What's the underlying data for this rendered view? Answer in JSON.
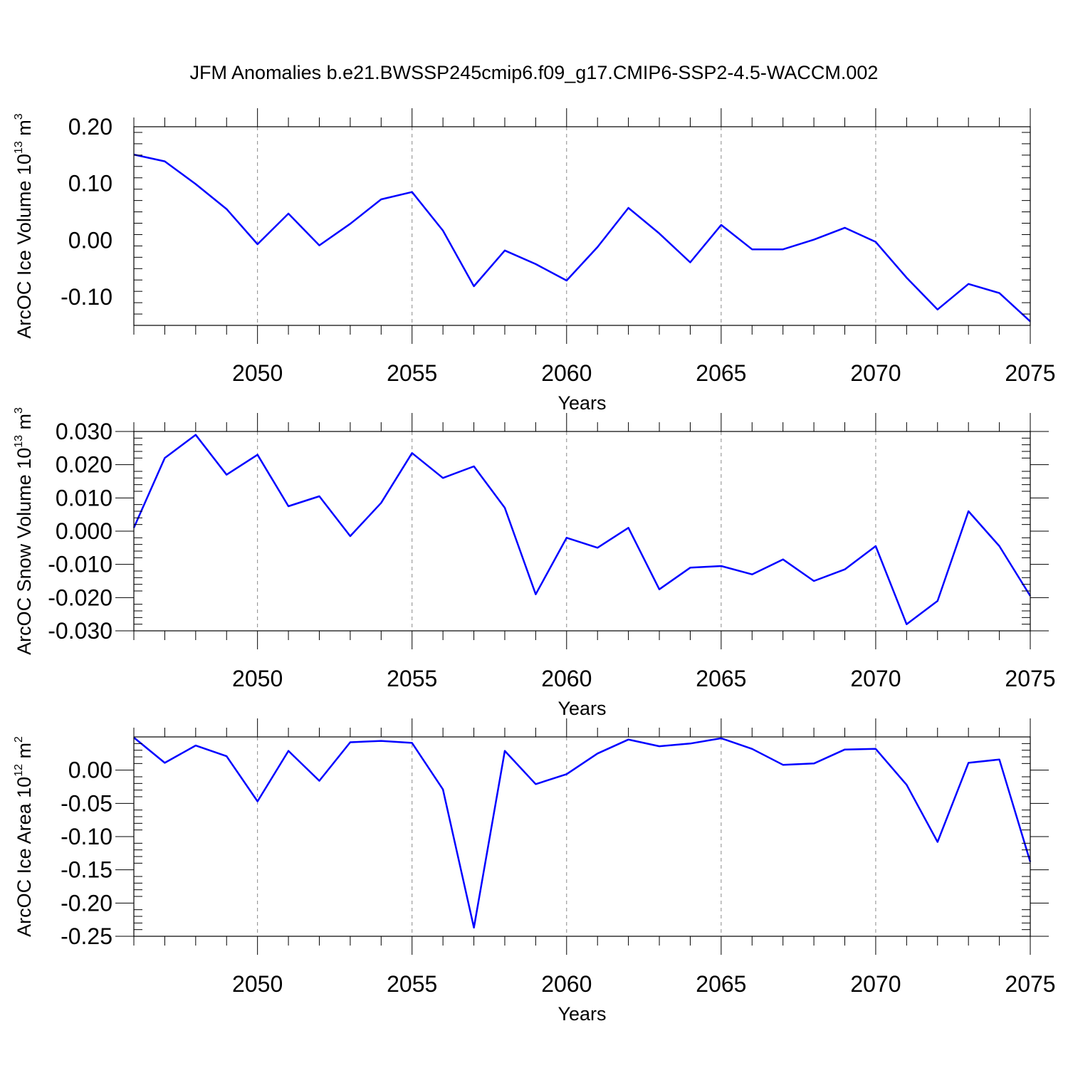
{
  "figure": {
    "title": "JFM Anomalies b.e21.BWSSP245cmip6.f09_g17.CMIP6-SSP2-4.5-WACCM.002"
  },
  "colors": {
    "line": "#0000ff",
    "axes": "#000000",
    "grid": "#888888"
  },
  "chart_data": [
    {
      "type": "line",
      "title": "JFM Anomalies b.e21.BWSSP245cmip6.f09_g17.CMIP6-SSP2-4.5-WACCM.002",
      "xlabel": "Years",
      "ylabel": "ArcOC Ice Volume 10",
      "ylabel_exp": "13",
      "ylabel_unit": " m",
      "ylabel_unit_exp": "3",
      "x": [
        2046,
        2047,
        2048,
        2049,
        2050,
        2051,
        2052,
        2053,
        2054,
        2055,
        2056,
        2057,
        2058,
        2059,
        2060,
        2061,
        2062,
        2063,
        2064,
        2065,
        2066,
        2067,
        2068,
        2069,
        2070,
        2071,
        2072,
        2073,
        2074,
        2075
      ],
      "series": [
        {
          "values": [
            0.151,
            0.139,
            0.099,
            0.055,
            -0.007,
            0.047,
            -0.009,
            0.029,
            0.072,
            0.085,
            0.017,
            -0.081,
            -0.018,
            -0.042,
            -0.071,
            -0.012,
            0.057,
            0.012,
            -0.039,
            0.027,
            -0.016,
            -0.016,
            0.001,
            0.022,
            -0.003,
            -0.066,
            -0.122,
            -0.077,
            -0.093,
            -0.143
          ]
        }
      ],
      "xlim": [
        2046,
        2075
      ],
      "ylim": [
        -0.15,
        0.2
      ],
      "xticks": [
        2050,
        2055,
        2060,
        2065,
        2070,
        2075
      ],
      "xtick_labels": [
        "2050",
        "2055",
        "2060",
        "2065",
        "2070",
        "2075"
      ],
      "yticks": [
        0.2,
        0.1,
        0.0,
        -0.1
      ],
      "ytick_labels": [
        "0.20",
        "0.10",
        "0.00",
        "-0.10"
      ],
      "grid": "vertical dashed at major x ticks"
    },
    {
      "type": "line",
      "xlabel": "Years",
      "ylabel": "ArcOC Snow Volume 10",
      "ylabel_exp": "13",
      "ylabel_unit": " m",
      "ylabel_unit_exp": "3",
      "x": [
        2046,
        2047,
        2048,
        2049,
        2050,
        2051,
        2052,
        2053,
        2054,
        2055,
        2056,
        2057,
        2058,
        2059,
        2060,
        2061,
        2062,
        2063,
        2064,
        2065,
        2066,
        2067,
        2068,
        2069,
        2070,
        2071,
        2072,
        2073,
        2074,
        2075
      ],
      "series": [
        {
          "values": [
            0.001,
            0.022,
            0.029,
            0.017,
            0.023,
            0.0075,
            0.0105,
            -0.0015,
            0.0085,
            0.0235,
            0.016,
            0.0195,
            0.007,
            -0.019,
            -0.002,
            -0.005,
            0.001,
            -0.0175,
            -0.011,
            -0.0105,
            -0.013,
            -0.0085,
            -0.015,
            -0.0115,
            -0.0045,
            -0.028,
            -0.021,
            0.006,
            -0.0045,
            -0.0195
          ]
        }
      ],
      "xlim": [
        2046,
        2075
      ],
      "ylim": [
        -0.03,
        0.03
      ],
      "xticks": [
        2050,
        2055,
        2060,
        2065,
        2070,
        2075
      ],
      "xtick_labels": [
        "2050",
        "2055",
        "2060",
        "2065",
        "2070",
        "2075"
      ],
      "yticks": [
        0.03,
        0.02,
        0.01,
        0.0,
        -0.01,
        -0.02,
        -0.03
      ],
      "ytick_labels": [
        "0.030",
        "0.020",
        "0.010",
        "0.000",
        "-0.010",
        "-0.020",
        "-0.030"
      ],
      "grid": "vertical dashed at major x ticks"
    },
    {
      "type": "line",
      "xlabel": "Years",
      "ylabel": "ArcOC Ice Area 10",
      "ylabel_exp": "12",
      "ylabel_unit": " m",
      "ylabel_unit_exp": "2",
      "x": [
        2046,
        2047,
        2048,
        2049,
        2050,
        2051,
        2052,
        2053,
        2054,
        2055,
        2056,
        2057,
        2058,
        2059,
        2060,
        2061,
        2062,
        2063,
        2064,
        2065,
        2066,
        2067,
        2068,
        2069,
        2070,
        2071,
        2072,
        2073,
        2074,
        2075
      ],
      "series": [
        {
          "values": [
            0.049,
            0.011,
            0.037,
            0.021,
            -0.047,
            0.029,
            -0.016,
            0.042,
            0.044,
            0.041,
            -0.029,
            -0.237,
            0.029,
            -0.021,
            -0.006,
            0.025,
            0.046,
            0.036,
            0.04,
            0.048,
            0.032,
            0.008,
            0.01,
            0.031,
            0.032,
            -0.022,
            -0.108,
            0.011,
            0.016,
            -0.138
          ]
        }
      ],
      "xlim": [
        2046,
        2075
      ],
      "ylim": [
        -0.25,
        0.05
      ],
      "xticks": [
        2050,
        2055,
        2060,
        2065,
        2070,
        2075
      ],
      "xtick_labels": [
        "2050",
        "2055",
        "2060",
        "2065",
        "2070",
        "2075"
      ],
      "yticks": [
        0.0,
        -0.05,
        -0.1,
        -0.15,
        -0.2,
        -0.25
      ],
      "ytick_labels": [
        "0.00",
        "-0.05",
        "-0.10",
        "-0.15",
        "-0.20",
        "-0.25"
      ],
      "grid": "vertical dashed at major x ticks"
    }
  ]
}
